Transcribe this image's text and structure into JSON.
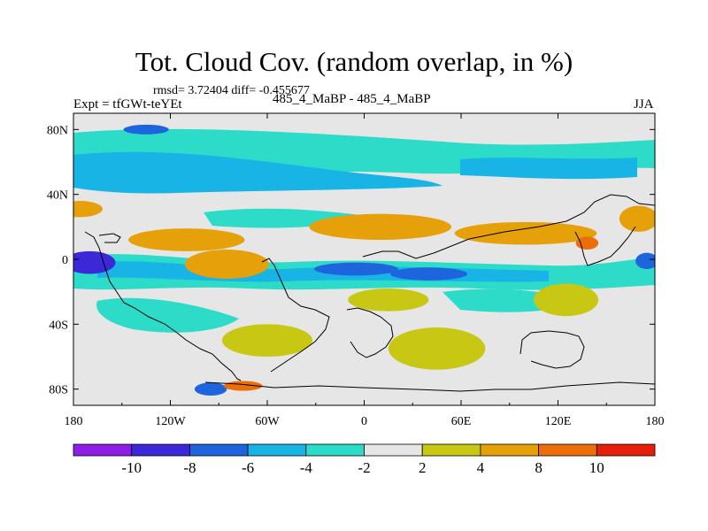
{
  "chart_data": {
    "type": "heatmap",
    "title": "Tot. Cloud Cov. (random overlap, in %)",
    "stats": "rmsd= 3.72404 diff= -0.455677",
    "left_label": "Expt = tfGWt-teYEt",
    "center_label": "485_4_MaBP - 485_4_MaBP",
    "right_label": "JJA",
    "x_ticks": [
      "180",
      "120W",
      "60W",
      "0",
      "60E",
      "120E",
      "180"
    ],
    "x_tick_values": [
      -180,
      -120,
      -60,
      0,
      60,
      120,
      180
    ],
    "y_ticks": [
      "80N",
      "40N",
      "0",
      "40S",
      "80S"
    ],
    "y_tick_values": [
      80,
      40,
      0,
      -40,
      -80
    ],
    "xlim": [
      -180,
      180
    ],
    "ylim": [
      -90,
      90
    ],
    "colorbar": {
      "labels": [
        "-10",
        "-8",
        "-6",
        "-4",
        "-2",
        "2",
        "4",
        "8",
        "10"
      ],
      "colors": [
        "#8c1ee6",
        "#3c28d7",
        "#1e64dc",
        "#19b4e6",
        "#2ddcc8",
        "#e6e6e6",
        "#c8c814",
        "#e6a00a",
        "#eb6e0a",
        "#e61e0a"
      ]
    },
    "anomaly_regions": [
      {
        "lon": -170,
        "lat": -2,
        "rx": 16,
        "ry": 7,
        "value": -10
      },
      {
        "lon": -135,
        "lat": 80,
        "rx": 14,
        "ry": 3,
        "value": -8
      },
      {
        "lon": -5,
        "lat": -6,
        "rx": 26,
        "ry": 4,
        "value": -8
      },
      {
        "lon": 40,
        "lat": -9,
        "rx": 24,
        "ry": 4,
        "value": -8
      },
      {
        "lon": 175,
        "lat": -1,
        "rx": 7,
        "ry": 5,
        "value": -8
      },
      {
        "lon": -95,
        "lat": -80,
        "rx": 10,
        "ry": 4,
        "value": -8
      },
      {
        "lon": -176,
        "lat": 31,
        "rx": 14,
        "ry": 5,
        "value": 6
      },
      {
        "lon": -110,
        "lat": 12,
        "rx": 36,
        "ry": 7,
        "value": 6
      },
      {
        "lon": -85,
        "lat": -3,
        "rx": 26,
        "ry": 9,
        "value": 6
      },
      {
        "lon": 10,
        "lat": 20,
        "rx": 44,
        "ry": 8,
        "value": 6
      },
      {
        "lon": 100,
        "lat": 16,
        "rx": 44,
        "ry": 7,
        "value": 6
      },
      {
        "lon": 170,
        "lat": 25,
        "rx": 12,
        "ry": 8,
        "value": 6
      },
      {
        "lon": 138,
        "lat": 10,
        "rx": 7,
        "ry": 4,
        "value": 9
      },
      {
        "lon": -75,
        "lat": -78,
        "rx": 12,
        "ry": 3,
        "value": 9
      },
      {
        "lon": -60,
        "lat": -50,
        "rx": 28,
        "ry": 10,
        "value": 3
      },
      {
        "lon": 45,
        "lat": -55,
        "rx": 30,
        "ry": 13,
        "value": 3
      },
      {
        "lon": 15,
        "lat": -25,
        "rx": 25,
        "ry": 7,
        "value": 3
      },
      {
        "lon": 125,
        "lat": -25,
        "rx": 20,
        "ry": 10,
        "value": 3
      }
    ]
  }
}
